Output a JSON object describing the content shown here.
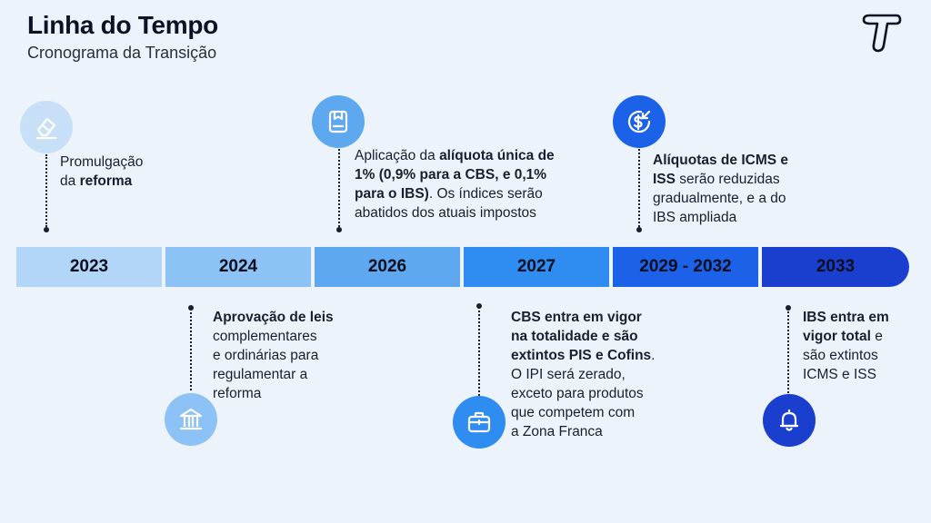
{
  "header": {
    "title": "Linha do Tempo",
    "subtitle": "Cronograma da Transição"
  },
  "colors": {
    "bar1": "#b2d6f7",
    "bar2": "#8cc2f5",
    "bar3": "#5ea8f0",
    "bar4": "#2f8cf0",
    "bar5": "#1c62e8",
    "bar6": "#1a3fcf"
  },
  "timeline": [
    {
      "year": "2023"
    },
    {
      "year": "2024"
    },
    {
      "year": "2026"
    },
    {
      "year": "2027"
    },
    {
      "year": "2029 - 2032"
    },
    {
      "year": "2033"
    }
  ],
  "events": {
    "e2023": {
      "t1": "Promulgação",
      "t2": "da ",
      "t3": "reforma"
    },
    "e2024": {
      "t1": "Aprovação de leis",
      "t2": "complementares",
      "t3": "e ordinárias para",
      "t4": "regulamentar a",
      "t5": "reforma"
    },
    "e2026": {
      "t1a": "Aplicação da ",
      "t1b": "alíquota única de",
      "t2": "1% (0,9% para a CBS, e 0,1%",
      "t3a": "para o IBS)",
      "t3b": ". Os índices serão",
      "t4": "abatidos dos atuais impostos"
    },
    "e2027": {
      "t1": "CBS entra em vigor",
      "t2": "na totalidade e são",
      "t3a": "extintos PIS e Cofins",
      "t3b": ".",
      "t4": "O IPI será zerado,",
      "t5": "exceto para produtos",
      "t6": "que competem com",
      "t7": "a Zona Franca"
    },
    "e2029": {
      "t1": "Alíquotas de ICMS e",
      "t2a": "ISS",
      "t2b": " serão reduzidas",
      "t3": "gradualmente, e a do",
      "t4": "IBS ampliada"
    },
    "e2033": {
      "t1": "IBS entra em",
      "t2a": "vigor total",
      "t2b": " e",
      "t3": "são extintos",
      "t4": "ICMS e ISS"
    }
  },
  "icons": [
    "eraser-icon",
    "document-icon",
    "dollar-exchange-icon",
    "bank-icon",
    "briefcase-icon",
    "bell-icon"
  ]
}
